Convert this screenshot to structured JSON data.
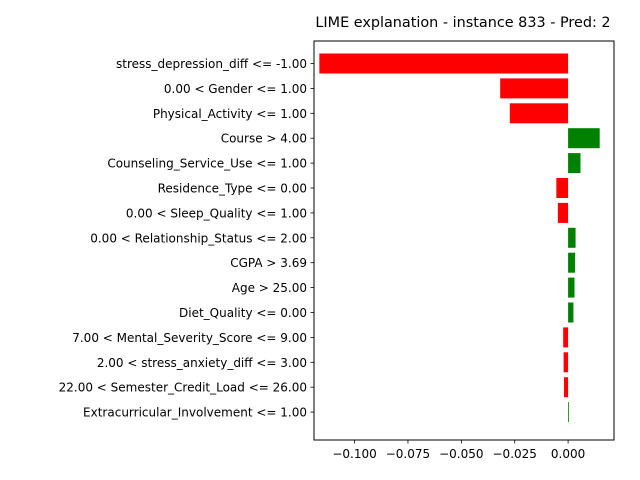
{
  "chart_data": {
    "type": "bar",
    "orientation": "horizontal",
    "title": "LIME explanation - instance 833 - Pred: 2",
    "xlabel": "",
    "ylabel": "",
    "xlim": [
      -0.119,
      0.0215
    ],
    "xticks": [
      -0.1,
      -0.075,
      -0.05,
      -0.025,
      0.0
    ],
    "xtick_labels": [
      "−0.100",
      "−0.075",
      "−0.050",
      "−0.025",
      "0.000"
    ],
    "grid": false,
    "colors": {
      "positive": "#008000",
      "negative": "#ff0000"
    },
    "categories": [
      "stress_depression_diff <= -1.00",
      "0.00 < Gender <= 1.00",
      "Physical_Activity <= 1.00",
      "Course > 4.00",
      "Counseling_Service_Use <= 1.00",
      "Residence_Type <= 0.00",
      "0.00 < Sleep_Quality <= 1.00",
      "0.00 < Relationship_Status <= 2.00",
      "CGPA > 3.69",
      "Age > 25.00",
      "Diet_Quality <= 0.00",
      "7.00 < Mental_Severity_Score <= 9.00",
      "2.00 < stress_anxiety_diff <= 3.00",
      "22.00 < Semester_Credit_Load <= 26.00",
      "Extracurricular_Involvement <= 1.00"
    ],
    "values": [
      -0.1165,
      -0.0318,
      -0.0273,
      0.0148,
      0.0058,
      -0.0055,
      -0.0048,
      0.0035,
      0.0033,
      0.003,
      0.0025,
      -0.0023,
      -0.0021,
      -0.0019,
      0.0003
    ]
  }
}
